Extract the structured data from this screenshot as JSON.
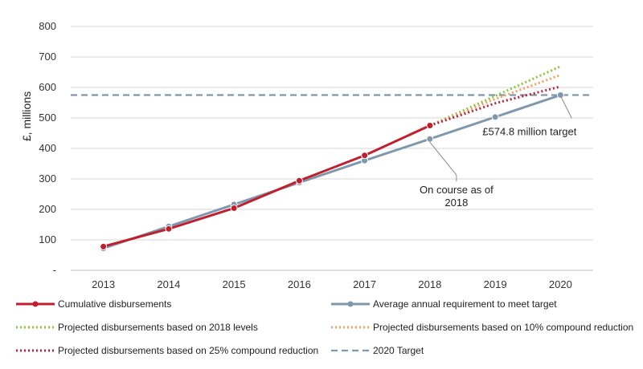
{
  "chart_data": {
    "type": "line",
    "ylabel": "£, millions",
    "ylim": [
      0,
      800
    ],
    "yticks": [
      "-",
      "100",
      "200",
      "300",
      "400",
      "500",
      "600",
      "700",
      "800"
    ],
    "ytick_values": [
      0,
      100,
      200,
      300,
      400,
      500,
      600,
      700,
      800
    ],
    "categories": [
      "2013",
      "2014",
      "2015",
      "2016",
      "2017",
      "2018",
      "2019",
      "2020"
    ],
    "grid": true,
    "legend_position": "bottom",
    "series": [
      {
        "name": "Cumulative disbursements",
        "style": "solid-markers",
        "color": "#c0202e",
        "x": [
          "2013",
          "2014",
          "2015",
          "2016",
          "2017",
          "2018"
        ],
        "values": [
          78,
          136,
          204,
          294,
          377,
          475
        ]
      },
      {
        "name": "Average annual requirement to meet target",
        "style": "solid-markers",
        "color": "#7f98ad",
        "x": [
          "2013",
          "2014",
          "2015",
          "2016",
          "2017",
          "2018",
          "2019",
          "2020"
        ],
        "values": [
          72,
          144,
          216,
          288,
          360,
          431,
          503,
          575
        ]
      },
      {
        "name": "Projected disbursements based on 2018 levels",
        "style": "dotted",
        "color": "#8ec63f",
        "x": [
          "2018",
          "2019",
          "2020"
        ],
        "values": [
          475,
          572,
          669
        ]
      },
      {
        "name": "Projected disbursements based on 10% compound reduction",
        "style": "dotted",
        "color": "#f0a060",
        "x": [
          "2018",
          "2019",
          "2020"
        ],
        "values": [
          475,
          562,
          641
        ]
      },
      {
        "name": "Projected disbursements based on 25% compound reduction",
        "style": "dotted",
        "color": "#b5243a",
        "x": [
          "2018",
          "2019",
          "2020"
        ],
        "values": [
          475,
          548,
          603
        ]
      },
      {
        "name": "2020 Target",
        "style": "dashed",
        "color": "#7f98ad",
        "hline": 575
      }
    ],
    "annotations": [
      {
        "text_lines": [
          "On course as of",
          "2018"
        ],
        "x": "2018",
        "y": 431
      },
      {
        "text_lines": [
          "£574.8 million target"
        ],
        "x": "2020",
        "y": 575
      }
    ]
  }
}
